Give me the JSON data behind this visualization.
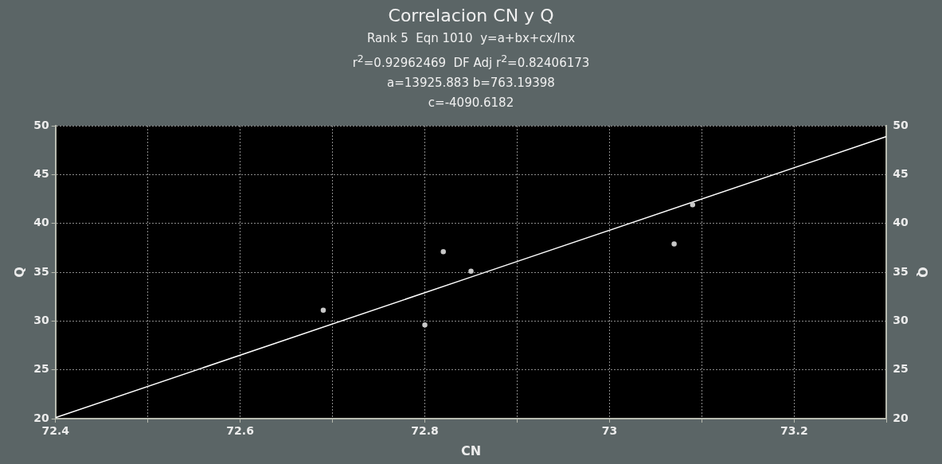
{
  "chart_data": {
    "type": "scatter",
    "title": "Correlacion CN y Q",
    "subtitle": "Rank 5  Eqn 1010  y=a+bx+cx/lnx",
    "annotations": [
      "r$^{2}$=0.92962469  DF Adj r$^{2}$=0.82406173",
      "a=13925.883 b=763.19398",
      "c=-4090.6182"
    ],
    "xlabel": "CN",
    "ylabel": "Q",
    "y2label": "Q",
    "series": [
      {
        "color": "#c8c8c8",
        "marker": "circle",
        "x": [
          72.69,
          72.8,
          72.82,
          72.85,
          73.07,
          73.09
        ],
        "values": [
          31.1,
          29.6,
          37.1,
          35.1,
          37.9,
          41.9
        ]
      },
      {
        "type": "line",
        "color": "#ffffff",
        "marker": "none",
        "x": [
          72.4,
          72.85,
          73.3
        ],
        "values": [
          20.1,
          34.5,
          48.9
        ]
      }
    ],
    "xlim": [
      72.4,
      73.3
    ],
    "xticks": [
      72.4,
      {
        "value": 72.5,
        "label": null
      },
      72.6,
      {
        "value": 72.7,
        "label": null
      },
      72.8,
      {
        "value": 72.9,
        "label": null
      },
      73,
      {
        "value": 73.1,
        "label": null
      },
      73.2,
      {
        "value": 73.3,
        "label": null
      }
    ],
    "ylim": [
      20,
      50
    ],
    "yticks": [
      20,
      25,
      30,
      35,
      40,
      45,
      50
    ],
    "y2lim": [
      20,
      50
    ],
    "y2ticks": [
      20,
      25,
      30,
      35,
      40,
      45,
      50
    ],
    "grid": true
  }
}
